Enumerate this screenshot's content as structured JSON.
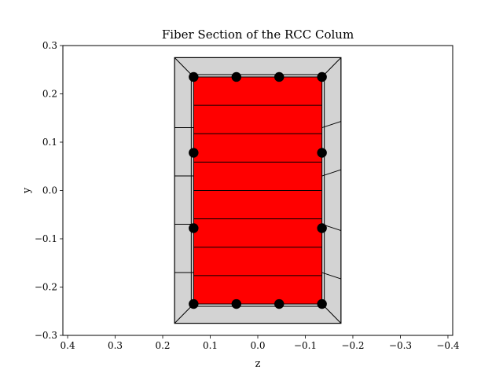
{
  "chart_data": {
    "type": "scatter",
    "title": "Fiber Section of the RCC Colum",
    "xlabel": "z",
    "ylabel": "y",
    "xlim": [
      0.41,
      -0.41
    ],
    "ylim": [
      -0.3,
      0.3
    ],
    "x_axis_inverted": true,
    "grid": false,
    "x_ticks": [
      0.4,
      0.3,
      0.2,
      0.1,
      0.0,
      -0.1,
      -0.2,
      -0.3,
      -0.4
    ],
    "y_ticks": [
      0.3,
      0.2,
      0.1,
      0.0,
      -0.1,
      -0.2,
      -0.3
    ],
    "x_tick_labels": [
      "0.4",
      "0.3",
      "0.2",
      "0.1",
      "0.0",
      "−0.1",
      "−0.2",
      "−0.3",
      "−0.4"
    ],
    "y_tick_labels": [
      "0.3",
      "0.2",
      "0.1",
      "0.0",
      "−0.1",
      "−0.2",
      "−0.3"
    ],
    "cover_patch": {
      "outer_z": [
        0.175,
        -0.175
      ],
      "outer_y": [
        -0.275,
        0.275
      ],
      "inner_z": [
        0.135,
        -0.135
      ],
      "inner_y": [
        -0.235,
        0.235
      ],
      "color": "#d3d3d3",
      "side_divisions_y": [
        0.13,
        0.03,
        -0.07,
        -0.17
      ],
      "side_divisions_outer_y": [
        0.165,
        0.055,
        -0.055,
        -0.165
      ]
    },
    "core_patch": {
      "z": [
        0.135,
        -0.135
      ],
      "y": [
        -0.235,
        0.235
      ],
      "color": "#ff0000",
      "layers": 8
    },
    "rebars": {
      "color": "#000000",
      "points": [
        {
          "z": 0.135,
          "y": 0.235
        },
        {
          "z": 0.045,
          "y": 0.235
        },
        {
          "z": -0.045,
          "y": 0.235
        },
        {
          "z": -0.135,
          "y": 0.235
        },
        {
          "z": 0.135,
          "y": 0.078
        },
        {
          "z": -0.135,
          "y": 0.078
        },
        {
          "z": 0.135,
          "y": -0.078
        },
        {
          "z": -0.135,
          "y": -0.078
        },
        {
          "z": 0.135,
          "y": -0.235
        },
        {
          "z": 0.045,
          "y": -0.235
        },
        {
          "z": -0.045,
          "y": -0.235
        },
        {
          "z": -0.135,
          "y": -0.235
        }
      ]
    }
  }
}
